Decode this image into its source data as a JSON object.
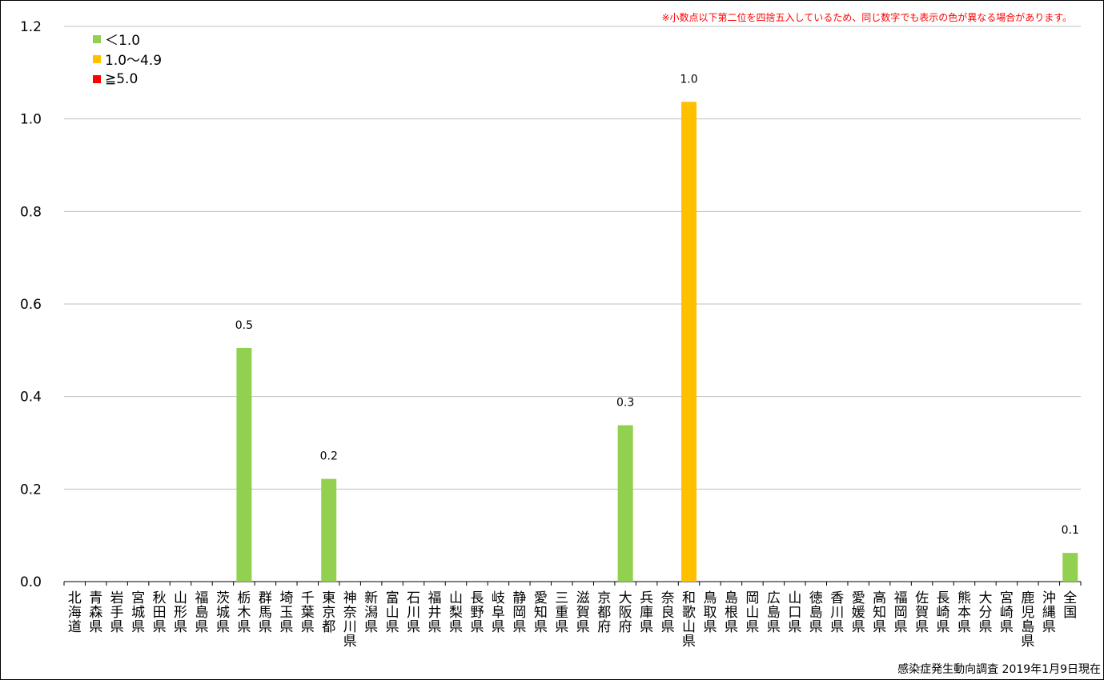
{
  "note": "※小数点以下第二位を四捨五入しているため、同じ数字でも表示の色が異なる場合があります。",
  "source": "感染症発生動向調査 2019年1月9日現在",
  "legend": [
    {
      "label": "＜1.0",
      "color": "#92d050"
    },
    {
      "label": "1.0～4.9",
      "color": "#ffc000"
    },
    {
      "label": "≧5.0",
      "color": "#ff0000"
    }
  ],
  "chart_data": {
    "type": "bar",
    "title": "",
    "xlabel": "",
    "ylabel": "",
    "ylim": [
      0,
      1.2
    ],
    "yticks": [
      "0.0",
      "0.2",
      "0.4",
      "0.6",
      "0.8",
      "1.0",
      "1.2"
    ],
    "grid": true,
    "legend_position": "top-left",
    "categories": [
      "北海道",
      "青森県",
      "岩手県",
      "宮城県",
      "秋田県",
      "山形県",
      "福島県",
      "茨城県",
      "栃木県",
      "群馬県",
      "埼玉県",
      "千葉県",
      "東京都",
      "神奈川県",
      "新潟県",
      "富山県",
      "石川県",
      "福井県",
      "山梨県",
      "長野県",
      "岐阜県",
      "静岡県",
      "愛知県",
      "三重県",
      "滋賀県",
      "京都府",
      "大阪府",
      "兵庫県",
      "奈良県",
      "和歌山県",
      "鳥取県",
      "島根県",
      "岡山県",
      "広島県",
      "山口県",
      "徳島県",
      "香川県",
      "愛媛県",
      "高知県",
      "福岡県",
      "佐賀県",
      "長崎県",
      "熊本県",
      "大分県",
      "宮崎県",
      "鹿児島県",
      "沖縄県",
      "全国"
    ],
    "values": [
      0,
      0,
      0,
      0,
      0,
      0,
      0,
      0,
      0.505,
      0,
      0,
      0,
      0.222,
      0,
      0,
      0,
      0,
      0,
      0,
      0,
      0,
      0,
      0,
      0,
      0,
      0,
      0.338,
      0,
      0,
      1.037,
      0,
      0,
      0,
      0,
      0,
      0,
      0,
      0,
      0,
      0,
      0,
      0,
      0,
      0,
      0,
      0,
      0,
      0.062
    ],
    "data_labels": {
      "8": "0.5",
      "12": "0.2",
      "26": "0.3",
      "29": "1.0",
      "47": "0.1"
    },
    "colors": [
      "#92d050",
      "#92d050",
      "#92d050",
      "#92d050",
      "#92d050",
      "#92d050",
      "#92d050",
      "#92d050",
      "#92d050",
      "#92d050",
      "#92d050",
      "#92d050",
      "#92d050",
      "#92d050",
      "#92d050",
      "#92d050",
      "#92d050",
      "#92d050",
      "#92d050",
      "#92d050",
      "#92d050",
      "#92d050",
      "#92d050",
      "#92d050",
      "#92d050",
      "#92d050",
      "#92d050",
      "#92d050",
      "#92d050",
      "#ffc000",
      "#92d050",
      "#92d050",
      "#92d050",
      "#92d050",
      "#92d050",
      "#92d050",
      "#92d050",
      "#92d050",
      "#92d050",
      "#92d050",
      "#92d050",
      "#92d050",
      "#92d050",
      "#92d050",
      "#92d050",
      "#92d050",
      "#92d050",
      "#92d050"
    ]
  }
}
